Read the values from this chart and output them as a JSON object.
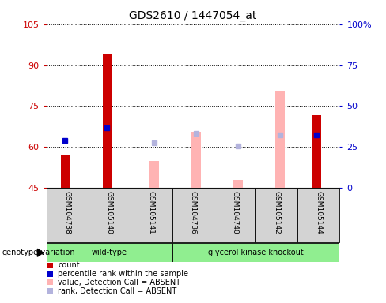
{
  "title": "GDS2610 / 1447054_at",
  "samples": [
    "GSM104738",
    "GSM105140",
    "GSM105141",
    "GSM104736",
    "GSM104740",
    "GSM105142",
    "GSM105144"
  ],
  "ylim_left": [
    45,
    105
  ],
  "ylim_right": [
    0,
    100
  ],
  "left_ticks": [
    45,
    60,
    75,
    90,
    105
  ],
  "right_ticks": [
    0,
    25,
    50,
    75,
    100
  ],
  "right_tick_labels": [
    "0",
    "25",
    "50",
    "75",
    "100%"
  ],
  "count_color": "#cc0000",
  "rank_color": "#0000cc",
  "value_absent_color": "#ffb3b3",
  "rank_absent_color": "#b3b3dd",
  "count": {
    "GSM104738": 57.0,
    "GSM105140": 94.0,
    "GSM105141": null,
    "GSM104736": null,
    "GSM104740": null,
    "GSM105142": null,
    "GSM105144": 71.5
  },
  "percentile_rank": {
    "GSM104738": 62.5,
    "GSM105140": 67.0,
    "GSM105141": null,
    "GSM104736": null,
    "GSM104740": null,
    "GSM105142": null,
    "GSM105144": 64.5
  },
  "value_absent": {
    "GSM104738": null,
    "GSM105140": null,
    "GSM105141": 55.0,
    "GSM104736": 65.5,
    "GSM104740": 48.0,
    "GSM105142": 80.5,
    "GSM105144": null
  },
  "rank_absent": {
    "GSM104738": null,
    "GSM105140": null,
    "GSM105141": 61.5,
    "GSM104736": 65.0,
    "GSM104740": 60.5,
    "GSM105142": 64.5,
    "GSM105144": null
  },
  "legend_items": [
    {
      "label": "count",
      "color": "#cc0000"
    },
    {
      "label": "percentile rank within the sample",
      "color": "#0000cc"
    },
    {
      "label": "value, Detection Call = ABSENT",
      "color": "#ffb3b3"
    },
    {
      "label": "rank, Detection Call = ABSENT",
      "color": "#b3b3dd"
    }
  ],
  "groups": [
    {
      "label": "wild-type",
      "start": 0,
      "end": 2,
      "color": "#90ee90"
    },
    {
      "label": "glycerol kinase knockout",
      "start": 3,
      "end": 6,
      "color": "#90ee90"
    }
  ],
  "genotype_label": "genotype/variation",
  "axis_label_color_left": "#cc0000",
  "axis_label_color_right": "#0000cc",
  "cell_bg_color": "#d3d3d3"
}
